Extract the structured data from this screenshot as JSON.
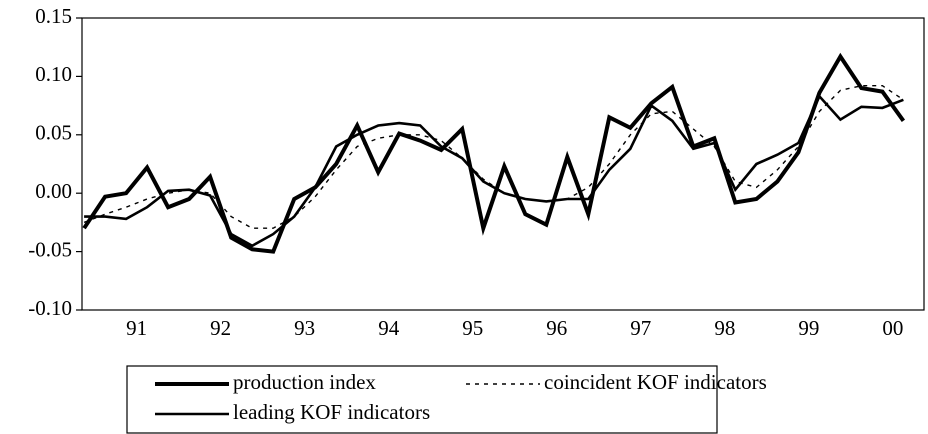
{
  "chart_data": {
    "type": "line",
    "x": [
      1990.875,
      1991.125,
      1991.375,
      1991.625,
      1991.875,
      1992.125,
      1992.375,
      1992.625,
      1992.875,
      1993.125,
      1993.375,
      1993.625,
      1993.875,
      1994.125,
      1994.375,
      1994.625,
      1994.875,
      1995.125,
      1995.375,
      1995.625,
      1995.875,
      1996.125,
      1996.375,
      1996.625,
      1996.875,
      1997.125,
      1997.375,
      1997.625,
      1997.875,
      1998.125,
      1998.375,
      1998.625,
      1998.875,
      1999.125,
      1999.375,
      1999.625,
      1999.875,
      2000.125,
      2000.375,
      2000.625
    ],
    "xlim": [
      1990.85,
      2000.87
    ],
    "xticks": [
      {
        "value": 1991.5,
        "label": "91"
      },
      {
        "value": 1992.5,
        "label": "92"
      },
      {
        "value": 1993.5,
        "label": "93"
      },
      {
        "value": 1994.5,
        "label": "94"
      },
      {
        "value": 1995.5,
        "label": "95"
      },
      {
        "value": 1996.5,
        "label": "96"
      },
      {
        "value": 1997.5,
        "label": "97"
      },
      {
        "value": 1998.5,
        "label": "98"
      },
      {
        "value": 1999.5,
        "label": "99"
      },
      {
        "value": 2000.5,
        "label": "00"
      }
    ],
    "ylim": [
      -0.1,
      0.15
    ],
    "yticks": [
      {
        "value": -0.1,
        "label": "-0.10"
      },
      {
        "value": -0.05,
        "label": "-0.05"
      },
      {
        "value": 0,
        "label": "0.00"
      },
      {
        "value": 0.05,
        "label": "0.05"
      },
      {
        "value": 0.1,
        "label": "0.10"
      },
      {
        "value": 0.15,
        "label": "0.15"
      }
    ],
    "series": [
      {
        "name": "production index",
        "color": "#000000",
        "line_style": "solid",
        "values": [
          -0.03,
          -0.003,
          0.0,
          0.022,
          -0.012,
          -0.005,
          0.014,
          -0.038,
          -0.048,
          -0.05,
          -0.005,
          0.005,
          0.025,
          0.058,
          0.018,
          0.051,
          0.045,
          0.037,
          0.055,
          -0.03,
          0.023,
          -0.018,
          -0.027,
          0.031,
          -0.018,
          0.065,
          0.056,
          0.077,
          0.091,
          0.04,
          0.047,
          -0.008,
          -0.005,
          0.01,
          0.035,
          0.086,
          0.117,
          0.09,
          0.087,
          0.062
        ]
      },
      {
        "name": "leading KOF indicators",
        "color": "#000000",
        "line_style": "solid",
        "values": [
          -0.02,
          -0.02,
          -0.022,
          -0.012,
          0.002,
          0.003,
          -0.002,
          -0.035,
          -0.045,
          -0.035,
          -0.02,
          0.005,
          0.04,
          0.05,
          0.058,
          0.06,
          0.058,
          0.04,
          0.03,
          0.01,
          0.0,
          -0.005,
          -0.007,
          -0.005,
          -0.005,
          0.02,
          0.038,
          0.075,
          0.062,
          0.038,
          0.043,
          0.003,
          0.025,
          0.033,
          0.043,
          0.083,
          0.063,
          0.074,
          0.073,
          0.08
        ]
      },
      {
        "name": "coincident KOF indicators",
        "color": "#000000",
        "line_style": "dotted",
        "values": [
          -0.025,
          -0.018,
          -0.012,
          -0.005,
          0.0,
          0.003,
          0.0,
          -0.02,
          -0.03,
          -0.03,
          -0.02,
          -0.003,
          0.02,
          0.04,
          0.047,
          0.05,
          0.05,
          0.045,
          0.03,
          0.012,
          0.0,
          -0.005,
          -0.007,
          -0.005,
          0.005,
          0.025,
          0.05,
          0.068,
          0.07,
          0.055,
          0.04,
          0.01,
          0.005,
          0.02,
          0.04,
          0.07,
          0.088,
          0.092,
          0.092,
          0.08
        ]
      }
    ]
  }
}
